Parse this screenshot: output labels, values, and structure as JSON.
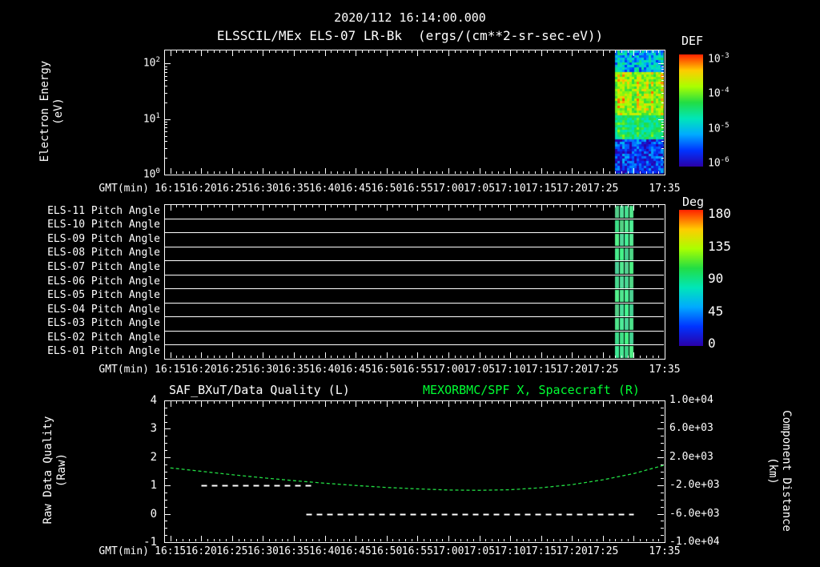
{
  "header": {
    "timestamp": "2020/112 16:14:00.000",
    "plot_title": "ELSSCIL/MEx ELS-07 LR-Bk",
    "plot_units": "(ergs/(cm**2-sr-sec-eV))"
  },
  "colors": {
    "background": "#000000",
    "foreground": "#ffffff",
    "green_accent": "#00ff33",
    "pitch_band_green": "#55e88a",
    "colormap_stops": [
      "#2a00a8",
      "#0033ff",
      "#00aaff",
      "#00e6b8",
      "#22dd44",
      "#aaff00",
      "#ffcc00",
      "#ff2200"
    ]
  },
  "time_axis": {
    "label": "GMT(min)",
    "start": "16:14",
    "end": "17:35",
    "tick_labels": [
      "16:15",
      "16:20",
      "16:25",
      "16:30",
      "16:35",
      "16:40",
      "16:45",
      "16:50",
      "16:55",
      "17:00",
      "17:05",
      "17:10",
      "17:15",
      "17:20",
      "17:25",
      "17:35"
    ]
  },
  "chart_data": [
    {
      "type": "heatmap",
      "panel": "electron_energy_spectrogram",
      "title": "ELSSCIL/MEx ELS-07 LR-Bk",
      "units": "ergs/(cm**2-sr-sec-eV)",
      "ylabel_lines": [
        "Electron Energy",
        "(eV)"
      ],
      "yscale": "log",
      "y_decade_ticks": [
        "10^0",
        "10^1",
        "10^2"
      ],
      "ylim_exp": [
        0,
        2.25
      ],
      "colorbar": {
        "title": "DEF",
        "scale": "log",
        "tick_labels": [
          "10^-3",
          "10^-4",
          "10^-5",
          "10^-6"
        ]
      },
      "burst": {
        "t_start": "17:27",
        "t_end": "17:35",
        "description": "noisy electron burst: green/yellow ~1e-4 at mid energies 6-60 eV, cyan-green 3-6 eV, dark blue/purple ~1e-6 below 3 eV, mixed blue-green above 60 eV"
      }
    },
    {
      "type": "heatmap",
      "panel": "pitch_angle",
      "row_labels": [
        "ELS-11 Pitch Angle",
        "ELS-10 Pitch Angle",
        "ELS-09 Pitch Angle",
        "ELS-08 Pitch Angle",
        "ELS-07 Pitch Angle",
        "ELS-06 Pitch Angle",
        "ELS-05 Pitch Angle",
        "ELS-04 Pitch Angle",
        "ELS-03 Pitch Angle",
        "ELS-02 Pitch Angle",
        "ELS-01 Pitch Angle"
      ],
      "colorbar": {
        "title": "Deg",
        "ylim": [
          0,
          180
        ],
        "tick_labels": [
          180,
          135,
          90,
          45,
          0
        ]
      },
      "burst": {
        "t_start": "17:27",
        "t_end": "17:30",
        "value_deg": 100
      }
    },
    {
      "type": "line",
      "panel": "quality_and_distance",
      "title_left": "SAF_BXuT/Data Quality (L)",
      "title_right": "MEXORBMC/SPF X, Spacecraft (R)",
      "ylabel_left_lines": [
        "Raw Data Quality",
        "(Raw)"
      ],
      "ylabel_right_lines": [
        "Component Distance",
        "(km)"
      ],
      "ylim_left": [
        -1,
        4
      ],
      "yticks_left": [
        4,
        3,
        2,
        1,
        0,
        -1
      ],
      "ylim_right": [
        -10000,
        10000
      ],
      "yticks_right": [
        "1.0e+04",
        "6.0e+03",
        "2.0e+03",
        "-2.0e+03",
        "-6.0e+03",
        "-1.0e+04"
      ],
      "series": [
        {
          "name": "SAF_BXuT/Data Quality",
          "axis": "left",
          "color": "#ffffff",
          "line_style": "dashed",
          "segments": [
            {
              "t": [
                "16:20",
                "16:38"
              ],
              "y": [
                1,
                1
              ]
            },
            {
              "t": [
                "16:37",
                "17:30"
              ],
              "y": [
                0,
                0
              ]
            }
          ]
        },
        {
          "name": "MEXORBMC/SPF X, Spacecraft",
          "axis": "right",
          "color": "#22dd44",
          "line_style": "dashed",
          "points_t": [
            "16:15",
            "16:20",
            "16:25",
            "16:30",
            "16:35",
            "16:40",
            "16:45",
            "16:50",
            "16:55",
            "17:00",
            "17:05",
            "17:10",
            "17:15",
            "17:20",
            "17:25",
            "17:30",
            "17:35"
          ],
          "points_km": [
            480,
            0,
            -480,
            -920,
            -1320,
            -1680,
            -2000,
            -2280,
            -2480,
            -2640,
            -2680,
            -2600,
            -2320,
            -1880,
            -1200,
            -320,
            880
          ]
        }
      ]
    }
  ]
}
